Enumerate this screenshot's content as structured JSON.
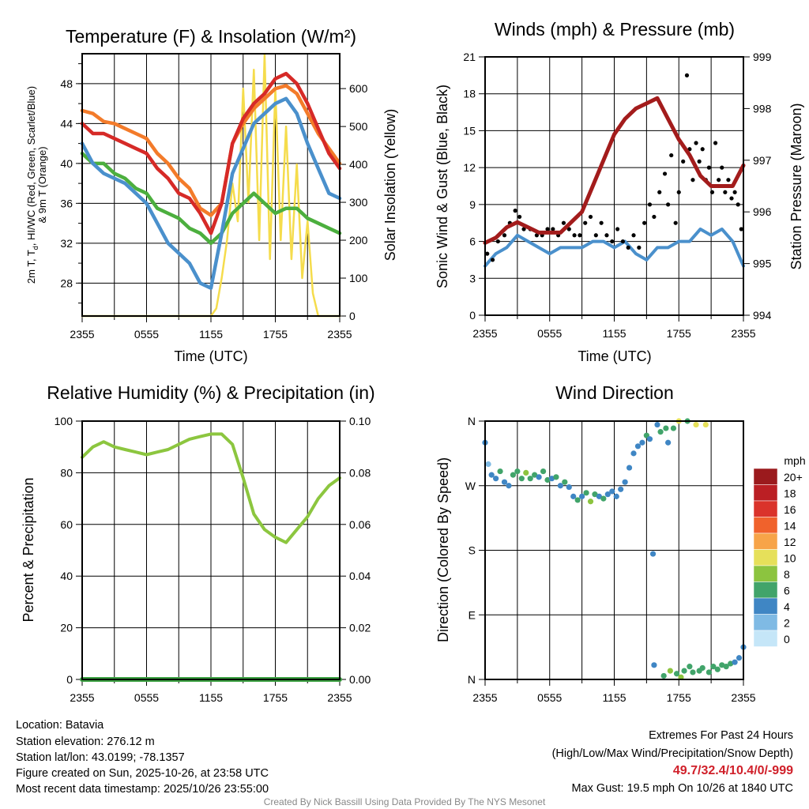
{
  "x_tick_labels": [
    "2355",
    "0555",
    "1155",
    "1755",
    "2355"
  ],
  "chart_data": [
    {
      "type": "line",
      "title": "Temperature (F) & Insolation (W/m²)",
      "xlabel": "Time (UTC)",
      "ylabel_parts": [
        "2m T, T",
        "d",
        ", HI/WC (Red, Green, Scarlet/Blue)",
        "& 9m T (Orange)"
      ],
      "ylabel_right": "Solar Insolation (Yellow)",
      "x_hours": [
        0,
        1,
        2,
        3,
        4,
        5,
        6,
        7,
        8,
        9,
        10,
        11,
        12,
        13,
        14,
        15,
        16,
        17,
        18,
        19,
        20,
        21,
        22,
        23,
        24
      ],
      "ylim": [
        24.7,
        51.0
      ],
      "yticks": [
        28,
        32,
        36,
        40,
        44,
        48
      ],
      "ylim_right": [
        0,
        692
      ],
      "yticks_right": [
        0,
        100,
        200,
        300,
        400,
        500,
        600
      ],
      "series": [
        {
          "name": "9m T",
          "axis": "left",
          "color": "#f37b2a",
          "values": [
            45.3,
            45,
            44.2,
            44,
            43.5,
            43,
            42.5,
            41,
            40,
            38.5,
            37.5,
            35.5,
            34.8,
            36,
            42,
            44,
            45.5,
            46.5,
            47.5,
            47.8,
            47,
            45,
            43,
            41.5,
            40
          ]
        },
        {
          "name": "Td",
          "axis": "left",
          "color": "#4caf3e",
          "values": [
            41,
            40,
            40,
            39,
            38.5,
            37.5,
            37,
            35.5,
            35,
            34.5,
            33.5,
            33,
            32,
            33,
            35,
            36,
            37,
            36,
            35,
            35.5,
            35.5,
            34.5,
            34,
            33.5,
            33
          ]
        },
        {
          "name": "HI/WC",
          "axis": "left",
          "color": "#4a90cc",
          "values": [
            42,
            40,
            39,
            38.5,
            38,
            37,
            36,
            34,
            32,
            31,
            30,
            28,
            27.5,
            33,
            39,
            41.5,
            44,
            45,
            46,
            46.5,
            45,
            42,
            39.5,
            37,
            36.5
          ]
        },
        {
          "name": "2m T",
          "axis": "left",
          "color": "#d62a27",
          "values": [
            44,
            43,
            43,
            42.5,
            42,
            41.5,
            41,
            39.5,
            38.5,
            37,
            36.5,
            35,
            33,
            36,
            42,
            44.5,
            46,
            47,
            48.5,
            49,
            48,
            46,
            43.5,
            41,
            39.5
          ]
        }
      ],
      "insolation": {
        "name": "Solar Insolation",
        "color": "#f5dc4c",
        "x_hours": [
          0,
          12,
          12.5,
          13,
          13.5,
          14,
          14.5,
          15,
          15.5,
          16,
          16.5,
          17,
          17.5,
          18,
          18.5,
          19,
          19.5,
          20,
          20.5,
          21,
          21.5,
          22,
          24
        ],
        "values": [
          0,
          0,
          20,
          100,
          200,
          350,
          250,
          600,
          300,
          650,
          200,
          690,
          150,
          600,
          200,
          500,
          150,
          400,
          100,
          250,
          60,
          0,
          0
        ]
      }
    },
    {
      "type": "line",
      "title": "Winds (mph) & Pressure (mb)",
      "xlabel": "Time (UTC)",
      "ylabel": "Sonic Wind & Gust (Blue, Black)",
      "ylabel_right": "Station Pressure (Maroon)",
      "x_hours": [
        0,
        1,
        2,
        3,
        4,
        5,
        6,
        7,
        8,
        9,
        10,
        11,
        12,
        13,
        14,
        15,
        16,
        17,
        18,
        19,
        20,
        21,
        22,
        23,
        24
      ],
      "ylim": [
        0,
        21
      ],
      "yticks": [
        0,
        3,
        6,
        9,
        12,
        15,
        18,
        21
      ],
      "ylim_right": [
        994,
        999
      ],
      "yticks_right": [
        994,
        995,
        996,
        997,
        998,
        999
      ],
      "wind": {
        "name": "Sonic Wind",
        "color": "#4a90cc",
        "values": [
          4,
          5,
          5.5,
          6.5,
          6,
          5.5,
          5,
          5.5,
          5.5,
          5.5,
          6,
          6,
          5.5,
          6,
          5,
          4.5,
          5.5,
          5.5,
          6,
          6,
          7,
          6.5,
          7,
          6,
          4
        ]
      },
      "pressure": {
        "name": "Station Pressure",
        "color": "#a31c1c",
        "values": [
          995.4,
          995.5,
          995.7,
          995.8,
          995.7,
          995.6,
          995.6,
          995.6,
          995.8,
          996,
          996.5,
          997,
          997.5,
          997.8,
          998,
          998.1,
          998.2,
          997.8,
          997.4,
          997.1,
          996.7,
          996.5,
          996.5,
          996.5,
          996.9
        ]
      },
      "gusts": {
        "name": "Gust",
        "color": "#000000",
        "points": [
          [
            0.2,
            5
          ],
          [
            0.7,
            4.5
          ],
          [
            1.2,
            6
          ],
          [
            1.8,
            6.5
          ],
          [
            2.3,
            7.5
          ],
          [
            2.8,
            8.5
          ],
          [
            3.2,
            8
          ],
          [
            3.6,
            7
          ],
          [
            4.2,
            7
          ],
          [
            4.8,
            6.5
          ],
          [
            5.3,
            6.5
          ],
          [
            5.8,
            7
          ],
          [
            6.3,
            7
          ],
          [
            6.8,
            6.5
          ],
          [
            7.3,
            7.5
          ],
          [
            7.8,
            7
          ],
          [
            8.3,
            6.5
          ],
          [
            8.8,
            6.5
          ],
          [
            9.3,
            7.5
          ],
          [
            9.8,
            8
          ],
          [
            10.3,
            6.5
          ],
          [
            10.8,
            7.5
          ],
          [
            11.3,
            6.5
          ],
          [
            11.8,
            6
          ],
          [
            12.3,
            7
          ],
          [
            12.8,
            6
          ],
          [
            13.3,
            5.5
          ],
          [
            13.8,
            6.5
          ],
          [
            14.3,
            5.5
          ],
          [
            14.8,
            7.5
          ],
          [
            15.3,
            9
          ],
          [
            15.7,
            8
          ],
          [
            16.2,
            10
          ],
          [
            16.7,
            11.5
          ],
          [
            17.0,
            9
          ],
          [
            17.3,
            13
          ],
          [
            17.7,
            7.5
          ],
          [
            18.0,
            10
          ],
          [
            18.4,
            12.5
          ],
          [
            18.75,
            19.5
          ],
          [
            19.0,
            13.5
          ],
          [
            19.3,
            11
          ],
          [
            19.6,
            14
          ],
          [
            19.9,
            12.5
          ],
          [
            20.2,
            13.5
          ],
          [
            20.5,
            11
          ],
          [
            20.8,
            12
          ],
          [
            21.1,
            10
          ],
          [
            21.4,
            14
          ],
          [
            21.7,
            11
          ],
          [
            22.0,
            12
          ],
          [
            22.3,
            10
          ],
          [
            22.6,
            11
          ],
          [
            22.9,
            9.5
          ],
          [
            23.2,
            10
          ],
          [
            23.5,
            9
          ],
          [
            23.8,
            7
          ]
        ]
      }
    },
    {
      "type": "line",
      "title": "Relative Humidity (%) & Precipitation (in)",
      "ylabel": "Percent & Precipitation",
      "x_hours": [
        0,
        1,
        2,
        3,
        4,
        5,
        6,
        7,
        8,
        9,
        10,
        11,
        12,
        13,
        14,
        15,
        16,
        17,
        18,
        19,
        20,
        21,
        22,
        23,
        24
      ],
      "ylim": [
        0,
        100
      ],
      "yticks": [
        0,
        20,
        40,
        60,
        80,
        100
      ],
      "ylim_right": [
        0,
        0.1
      ],
      "yticks_right": [
        "0.00",
        "0.02",
        "0.04",
        "0.06",
        "0.08",
        "0.10"
      ],
      "rh": {
        "name": "Relative Humidity",
        "color": "#8cc63f",
        "values": [
          86,
          90,
          92,
          90,
          89,
          88,
          87,
          88,
          89,
          91,
          93,
          94,
          95,
          95,
          91,
          78,
          64,
          58,
          55,
          53,
          58,
          63,
          70,
          75,
          78
        ]
      },
      "precip": {
        "name": "Precipitation",
        "color": "#3aa040",
        "values": [
          0,
          0,
          0,
          0,
          0,
          0,
          0,
          0,
          0,
          0,
          0,
          0,
          0,
          0,
          0,
          0,
          0,
          0,
          0,
          0,
          0,
          0,
          0,
          0,
          0
        ]
      }
    },
    {
      "type": "scatter",
      "title": "Wind Direction",
      "ylabel": "Direction (Colored By Speed)",
      "ylim": [
        0,
        360
      ],
      "ytick_values": [
        0,
        90,
        180,
        270,
        360
      ],
      "ytick_labels": [
        "N",
        "E",
        "S",
        "W",
        "N"
      ],
      "points": [
        [
          0,
          330,
          4
        ],
        [
          0.3,
          300,
          2
        ],
        [
          0.6,
          285,
          4
        ],
        [
          1,
          280,
          4
        ],
        [
          1.4,
          290,
          6
        ],
        [
          1.8,
          275,
          4
        ],
        [
          2.2,
          270,
          4
        ],
        [
          2.6,
          285,
          6
        ],
        [
          3,
          290,
          6
        ],
        [
          3.4,
          280,
          6
        ],
        [
          3.8,
          288,
          8
        ],
        [
          4.2,
          280,
          6
        ],
        [
          4.6,
          285,
          6
        ],
        [
          5,
          282,
          4
        ],
        [
          5.4,
          290,
          6
        ],
        [
          5.8,
          278,
          6
        ],
        [
          6.2,
          280,
          4
        ],
        [
          6.6,
          282,
          6
        ],
        [
          7,
          270,
          4
        ],
        [
          7.4,
          275,
          6
        ],
        [
          7.8,
          268,
          4
        ],
        [
          8.2,
          255,
          4
        ],
        [
          8.6,
          250,
          6
        ],
        [
          9,
          255,
          4
        ],
        [
          9.4,
          260,
          6
        ],
        [
          9.8,
          248,
          8
        ],
        [
          10.2,
          258,
          6
        ],
        [
          10.6,
          255,
          4
        ],
        [
          11,
          252,
          6
        ],
        [
          11.4,
          258,
          4
        ],
        [
          11.8,
          262,
          4
        ],
        [
          12.2,
          255,
          4
        ],
        [
          12.6,
          265,
          4
        ],
        [
          13,
          275,
          4
        ],
        [
          13.4,
          295,
          4
        ],
        [
          13.8,
          315,
          4
        ],
        [
          14.2,
          325,
          4
        ],
        [
          14.6,
          330,
          4
        ],
        [
          15,
          340,
          6
        ],
        [
          15.3,
          335,
          4
        ],
        [
          15.6,
          175,
          4
        ],
        [
          15.7,
          20,
          4
        ],
        [
          16,
          355,
          4
        ],
        [
          16.3,
          345,
          6
        ],
        [
          16.6,
          5,
          6
        ],
        [
          16.8,
          350,
          6
        ],
        [
          17,
          330,
          4
        ],
        [
          17.2,
          12,
          8
        ],
        [
          17.5,
          350,
          6
        ],
        [
          17.8,
          8,
          6
        ],
        [
          18,
          360,
          10
        ],
        [
          18.2,
          3,
          8
        ],
        [
          18.5,
          12,
          6
        ],
        [
          18.8,
          360,
          6
        ],
        [
          19,
          18,
          6
        ],
        [
          19.3,
          10,
          6
        ],
        [
          19.6,
          355,
          10
        ],
        [
          19.9,
          12,
          6
        ],
        [
          20.2,
          16,
          6
        ],
        [
          20.5,
          355,
          10
        ],
        [
          20.8,
          10,
          6
        ],
        [
          21.2,
          18,
          6
        ],
        [
          21.6,
          14,
          6
        ],
        [
          22,
          20,
          6
        ],
        [
          22.4,
          18,
          6
        ],
        [
          22.8,
          22,
          6
        ],
        [
          23.2,
          24,
          4
        ],
        [
          23.6,
          30,
          4
        ],
        [
          24,
          45,
          4
        ]
      ],
      "legend": {
        "title": "mph",
        "labels": [
          "20+",
          "18",
          "16",
          "14",
          "12",
          "10",
          "8",
          "6",
          "4",
          "2",
          "0"
        ],
        "colors": [
          "#9b1a1d",
          "#bb1f24",
          "#da332b",
          "#f0622c",
          "#f7a448",
          "#e6e05a",
          "#8cc43f",
          "#41a46a",
          "#3f86c4",
          "#7fbae4",
          "#c5e6f8"
        ]
      }
    }
  ],
  "info": {
    "location": "Location: Batavia",
    "elevation": "Station elevation: 276.12 m",
    "latlon": "Station lat/lon: 43.0199; -78.1357",
    "created": "Figure created on Sun, 2025-10-26, at 23:58 UTC",
    "recent": "Most recent data timestamp: 2025/10/26 23:55:00"
  },
  "extremes": {
    "title": "Extremes For Past 24 Hours",
    "subtitle": "(High/Low/Max Wind/Precipitation/Snow Depth)",
    "values": "49.7/32.4/10.4/0/-999",
    "values_color": "#d0202a",
    "max_gust": "Max Gust: 19.5 mph On 10/26 at 1840 UTC"
  },
  "credit": "Created By Nick Bassill Using Data Provided By The NYS Mesonet"
}
